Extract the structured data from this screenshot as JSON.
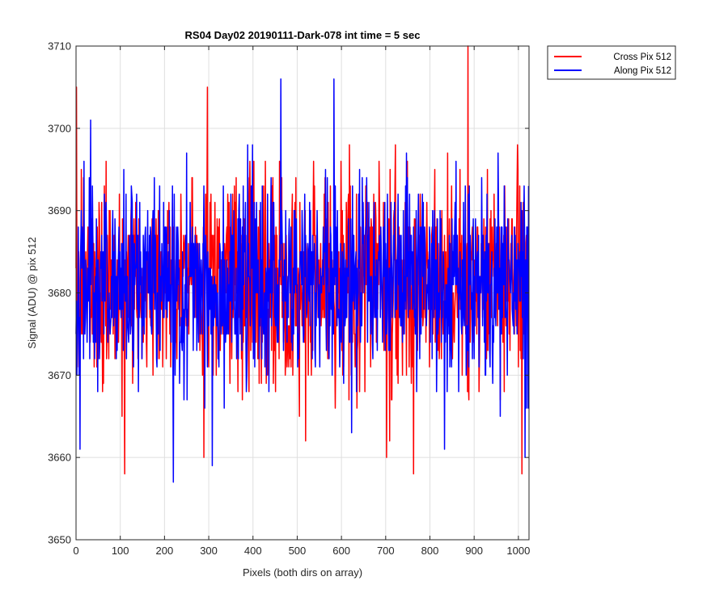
{
  "chart_data": {
    "type": "line",
    "title": "RS04 Day02 20190111-Dark-078 int time = 5 sec",
    "xlabel": "Pixels (both dirs on array)",
    "ylabel": "Signal (ADU) @ pix 512",
    "xlim": [
      0,
      1024
    ],
    "ylim": [
      3650,
      3710
    ],
    "xticks": [
      0,
      100,
      200,
      300,
      400,
      500,
      600,
      700,
      800,
      900,
      1000
    ],
    "yticks": [
      3650,
      3660,
      3670,
      3680,
      3690,
      3700,
      3710
    ],
    "grid": true,
    "legend_position": "outside-top-right",
    "series": [
      {
        "name": "Cross Pix 512",
        "color": "#ff0000",
        "mean": 3681,
        "std": 6.5,
        "seed": 17,
        "n": 1024,
        "highlights": [
          {
            "x": 1,
            "y": 3705
          },
          {
            "x": 110,
            "y": 3658
          },
          {
            "x": 297,
            "y": 3705
          },
          {
            "x": 702,
            "y": 3660
          },
          {
            "x": 763,
            "y": 3658
          },
          {
            "x": 886,
            "y": 3710
          },
          {
            "x": 1008,
            "y": 3658
          }
        ]
      },
      {
        "name": "Along Pix 512",
        "color": "#0000ff",
        "mean": 3681,
        "std": 6,
        "seed": 42,
        "n": 1024,
        "highlights": [
          {
            "x": 33,
            "y": 3701
          },
          {
            "x": 220,
            "y": 3657
          },
          {
            "x": 308,
            "y": 3659
          },
          {
            "x": 463,
            "y": 3706
          },
          {
            "x": 583,
            "y": 3706
          },
          {
            "x": 833,
            "y": 3661
          },
          {
            "x": 1015,
            "y": 3660
          }
        ]
      }
    ]
  }
}
